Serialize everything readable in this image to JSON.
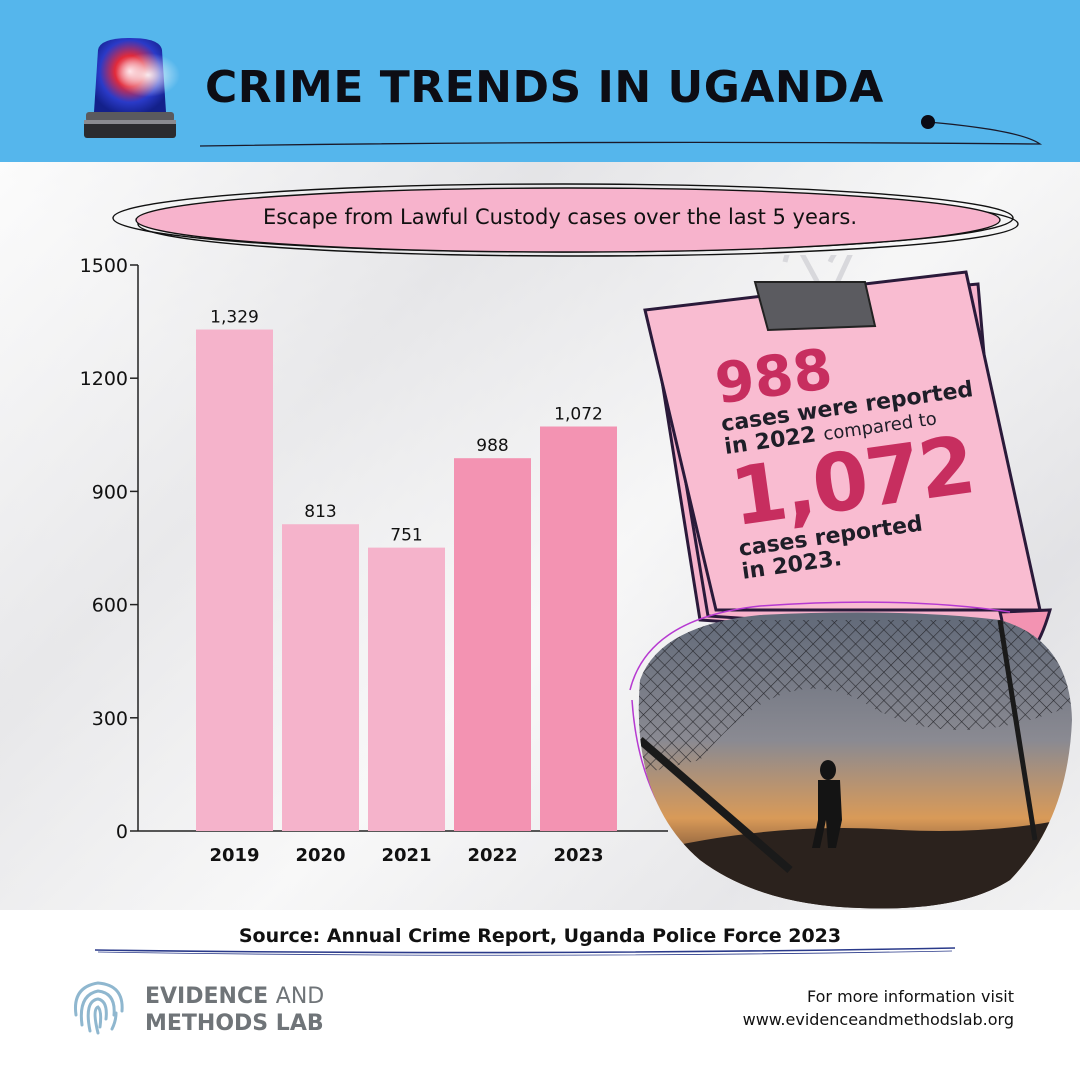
{
  "header": {
    "title": "CRIME TRENDS IN UGANDA",
    "accent_color": "#55b6ec"
  },
  "subtitle": "Escape from Lawful Custody cases over the last 5 years.",
  "chart_data": {
    "type": "bar",
    "categories": [
      "2019",
      "2020",
      "2021",
      "2022",
      "2023"
    ],
    "values": [
      1329,
      813,
      751,
      988,
      1072
    ],
    "value_labels": [
      "1,329",
      "813",
      "751",
      "988",
      "1,072"
    ],
    "yticks": [
      0,
      300,
      600,
      900,
      1200,
      1500
    ],
    "ylim": [
      0,
      1500
    ],
    "bar_colors": [
      "#f5b3cb",
      "#f5b3cb",
      "#f5b3cb",
      "#f393b2",
      "#f393b2"
    ]
  },
  "note": {
    "value1": "988",
    "line1": "cases were reported",
    "line2_bold": "in 2022",
    "line2_small": "compared to",
    "value2": "1,072",
    "line3": "cases reported",
    "line4": "in 2023."
  },
  "footer": {
    "source": "Source: Annual Crime Report, Uganda Police Force 2023",
    "logo_line1_bold": "EVIDENCE",
    "logo_line1_thin": "AND",
    "logo_line2": "METHODS LAB",
    "more_info_label": "For more information visit",
    "url": "www.evidenceandmethodslab.org"
  },
  "icons": [
    "siren-icon",
    "binder-clip-icon",
    "fingerprint-logo-icon"
  ]
}
